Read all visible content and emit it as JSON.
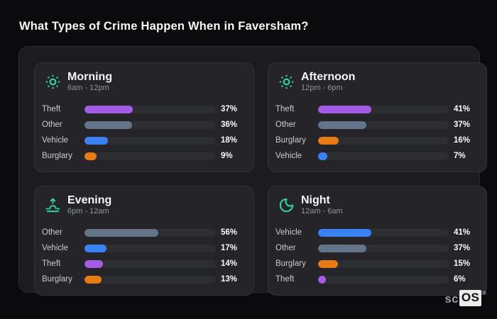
{
  "title": "What Types of Crime Happen When in Faversham?",
  "watermark": {
    "prefix": "sc",
    "brand": "OS",
    "registered": "®"
  },
  "colors": {
    "accent_teal": "#34d399",
    "theft": "#a55ce5",
    "other": "#64748b",
    "vehicle": "#3b82f6",
    "burglary": "#e97b17"
  },
  "cards": [
    {
      "title": "Morning",
      "time": "6am - 12pm",
      "icon": "sun-icon",
      "rows": [
        {
          "label": "Theft",
          "pct": 37,
          "pct_label": "37%",
          "color": "#a55ce5"
        },
        {
          "label": "Other",
          "pct": 36,
          "pct_label": "36%",
          "color": "#64748b"
        },
        {
          "label": "Vehicle",
          "pct": 18,
          "pct_label": "18%",
          "color": "#3b82f6"
        },
        {
          "label": "Burglary",
          "pct": 9,
          "pct_label": "9%",
          "color": "#e97b17"
        }
      ]
    },
    {
      "title": "Afternoon",
      "time": "12pm - 6pm",
      "icon": "sun-icon",
      "rows": [
        {
          "label": "Theft",
          "pct": 41,
          "pct_label": "41%",
          "color": "#a55ce5"
        },
        {
          "label": "Other",
          "pct": 37,
          "pct_label": "37%",
          "color": "#64748b"
        },
        {
          "label": "Burglary",
          "pct": 16,
          "pct_label": "16%",
          "color": "#e97b17"
        },
        {
          "label": "Vehicle",
          "pct": 7,
          "pct_label": "7%",
          "color": "#3b82f6"
        }
      ]
    },
    {
      "title": "Evening",
      "time": "6pm - 12am",
      "icon": "sunset-icon",
      "rows": [
        {
          "label": "Other",
          "pct": 56,
          "pct_label": "56%",
          "color": "#64748b"
        },
        {
          "label": "Vehicle",
          "pct": 17,
          "pct_label": "17%",
          "color": "#3b82f6"
        },
        {
          "label": "Theft",
          "pct": 14,
          "pct_label": "14%",
          "color": "#a55ce5"
        },
        {
          "label": "Burglary",
          "pct": 13,
          "pct_label": "13%",
          "color": "#e97b17"
        }
      ]
    },
    {
      "title": "Night",
      "time": "12am - 6am",
      "icon": "moon-icon",
      "rows": [
        {
          "label": "Vehicle",
          "pct": 41,
          "pct_label": "41%",
          "color": "#3b82f6"
        },
        {
          "label": "Other",
          "pct": 37,
          "pct_label": "37%",
          "color": "#64748b"
        },
        {
          "label": "Burglary",
          "pct": 15,
          "pct_label": "15%",
          "color": "#e97b17"
        },
        {
          "label": "Theft",
          "pct": 6,
          "pct_label": "6%",
          "color": "#a55ce5"
        }
      ]
    }
  ],
  "chart_data": [
    {
      "type": "bar",
      "orientation": "horizontal",
      "title": "Morning",
      "subtitle": "6am - 12pm",
      "categories": [
        "Theft",
        "Other",
        "Vehicle",
        "Burglary"
      ],
      "values": [
        37,
        36,
        18,
        9
      ],
      "unit": "%",
      "xlim": [
        0,
        100
      ],
      "bar_colors": [
        "#a55ce5",
        "#64748b",
        "#3b82f6",
        "#e97b17"
      ]
    },
    {
      "type": "bar",
      "orientation": "horizontal",
      "title": "Afternoon",
      "subtitle": "12pm - 6pm",
      "categories": [
        "Theft",
        "Other",
        "Burglary",
        "Vehicle"
      ],
      "values": [
        41,
        37,
        16,
        7
      ],
      "unit": "%",
      "xlim": [
        0,
        100
      ],
      "bar_colors": [
        "#a55ce5",
        "#64748b",
        "#e97b17",
        "#3b82f6"
      ]
    },
    {
      "type": "bar",
      "orientation": "horizontal",
      "title": "Evening",
      "subtitle": "6pm - 12am",
      "categories": [
        "Other",
        "Vehicle",
        "Theft",
        "Burglary"
      ],
      "values": [
        56,
        17,
        14,
        13
      ],
      "unit": "%",
      "xlim": [
        0,
        100
      ],
      "bar_colors": [
        "#64748b",
        "#3b82f6",
        "#a55ce5",
        "#e97b17"
      ]
    },
    {
      "type": "bar",
      "orientation": "horizontal",
      "title": "Night",
      "subtitle": "12am - 6am",
      "categories": [
        "Vehicle",
        "Other",
        "Burglary",
        "Theft"
      ],
      "values": [
        41,
        37,
        15,
        6
      ],
      "unit": "%",
      "xlim": [
        0,
        100
      ],
      "bar_colors": [
        "#3b82f6",
        "#64748b",
        "#e97b17",
        "#a55ce5"
      ]
    }
  ]
}
